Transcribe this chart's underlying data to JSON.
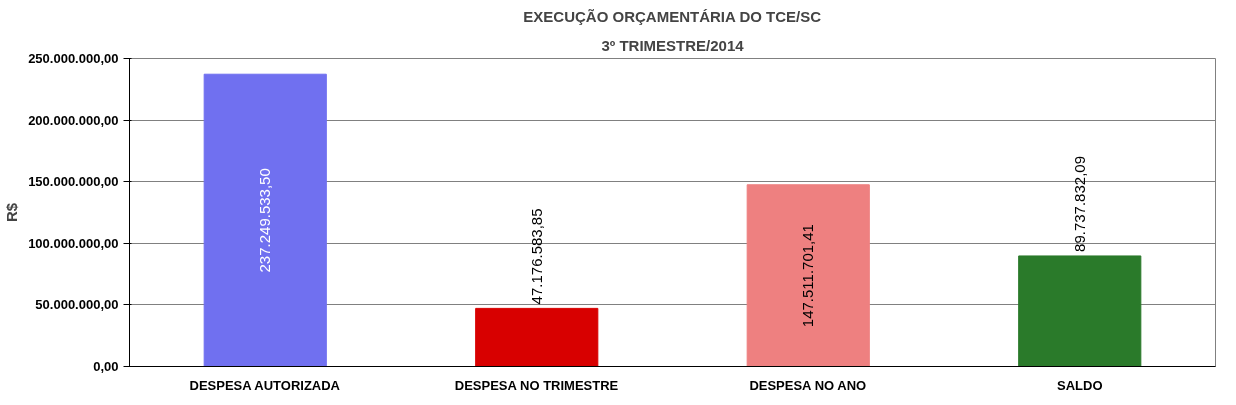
{
  "chart_data": {
    "type": "bar",
    "title": "EXECUÇÃO ORÇAMENTÁRIA DO TCE/SC",
    "subtitle": "3º TRIMESTRE/2014",
    "ylabel": "R$",
    "categories": [
      "DESPESA AUTORIZADA",
      "DESPESA NO TRIMESTRE",
      "DESPESA NO ANO",
      "SALDO"
    ],
    "values": [
      237249533.5,
      47176583.85,
      147511701.41,
      89737832.09
    ],
    "colors": [
      "#7070f0",
      "#d80000",
      "#ee8080",
      "#2a7a2a"
    ],
    "value_labels": [
      "237.249.533,50",
      "47.176.583,85",
      "147.511.701,41",
      "89.737.832,09"
    ],
    "ylim": [
      0,
      250000000
    ],
    "yticks": [
      {
        "value": 0,
        "label": "0,00"
      },
      {
        "value": 50000000,
        "label": "50.000.000,00"
      },
      {
        "value": 100000000,
        "label": "100.000.000,00"
      },
      {
        "value": 150000000,
        "label": "150.000.000,00"
      },
      {
        "value": 200000000,
        "label": "200.000.000,00"
      },
      {
        "value": 250000000,
        "label": "250.000.000,00"
      }
    ],
    "grid": "y"
  }
}
